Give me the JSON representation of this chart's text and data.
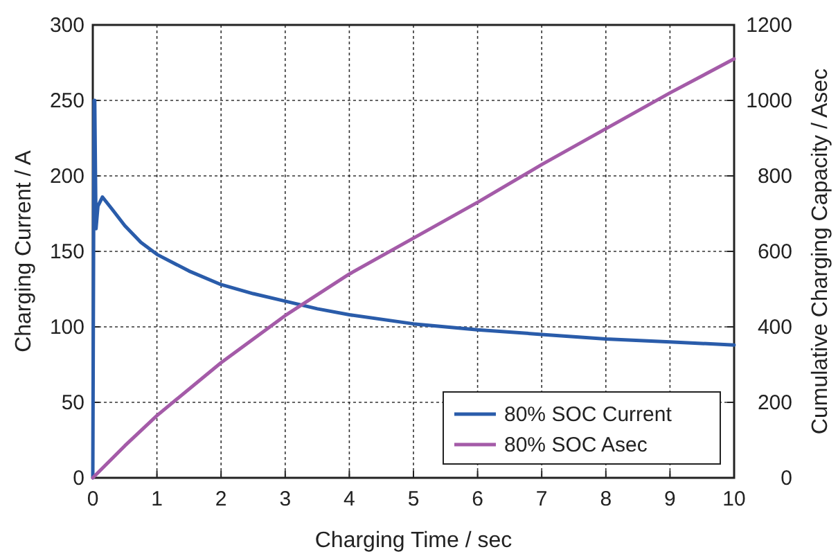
{
  "chart_data": {
    "type": "line",
    "xlabel": "Charging Time / sec",
    "ylabel": "Charging Current / A",
    "y2label": "Cumulative Charging Capacity / Asec",
    "xlim": [
      0,
      10
    ],
    "xticks": [
      0,
      1,
      2,
      3,
      4,
      5,
      6,
      7,
      8,
      9,
      10
    ],
    "ylim": [
      0,
      300
    ],
    "yticks": [
      0,
      50,
      100,
      150,
      200,
      250,
      300
    ],
    "y2lim": [
      0,
      1200
    ],
    "y2ticks": [
      0,
      200,
      400,
      600,
      800,
      1000,
      1200
    ],
    "grid": true,
    "legend": "bottom right",
    "line_style": "solid",
    "series": [
      {
        "name": "80% SOC Current",
        "color": "#2a5caa",
        "x": [
          0,
          0.02,
          0.03,
          0.05,
          0.06,
          0.08,
          0.15,
          0.3,
          0.5,
          0.75,
          1,
          1.5,
          2,
          2.5,
          3,
          3.5,
          4,
          5,
          6,
          7,
          8,
          9,
          10
        ],
        "values": [
          0,
          250,
          250,
          165,
          170,
          180,
          186,
          178,
          167,
          156,
          148,
          137,
          128,
          122,
          117,
          112,
          108,
          102,
          98,
          95,
          92,
          90,
          88
        ]
      },
      {
        "name": "80% SOC Asec",
        "color": "#a45ba8",
        "axis": "y2",
        "x": [
          0,
          0.5,
          1,
          2,
          3,
          4,
          5,
          6,
          7,
          8,
          9,
          10
        ],
        "values": [
          0,
          85,
          165,
          305,
          430,
          540,
          635,
          730,
          830,
          925,
          1020,
          1110
        ]
      }
    ]
  }
}
